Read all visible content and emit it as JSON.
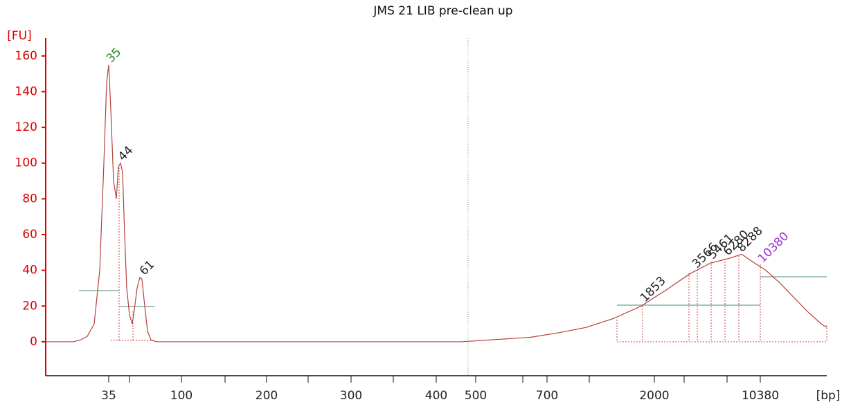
{
  "chart_data": {
    "type": "line",
    "title": "JMS 21 LIB pre-clean up",
    "ylabel": "[FU]",
    "xlabel": "[bp]",
    "x": [
      0,
      40,
      50,
      60,
      70,
      78,
      84,
      88,
      91,
      94,
      98,
      102,
      105,
      108,
      111,
      114,
      117,
      121,
      125,
      128,
      132,
      136,
      139,
      143,
      147,
      152,
      160,
      200,
      300,
      360,
      600,
      640,
      700,
      740,
      780,
      820,
      860,
      900,
      930,
      960,
      990,
      1005,
      1020,
      1040,
      1060,
      1080,
      1100,
      1120,
      1128
    ],
    "series": [
      {
        "color": "#b5403a",
        "values": [
          0,
          0,
          1,
          3,
          10,
          40,
          100,
          145,
          155,
          130,
          90,
          80,
          98,
          100,
          95,
          60,
          30,
          15,
          10,
          18,
          30,
          36,
          35,
          20,
          6,
          1,
          0,
          0,
          0,
          0,
          0,
          1,
          2.5,
          5,
          8,
          13,
          20,
          30,
          38,
          44,
          47,
          49,
          45,
          40,
          33,
          25,
          17,
          10,
          8
        ]
      }
    ],
    "xlim": [
      0,
      1128
    ],
    "ylim": [
      -19,
      170
    ],
    "yticks": [
      0,
      20,
      40,
      60,
      80,
      100,
      120,
      140,
      160
    ],
    "xticks": [
      {
        "value": 91,
        "label": "35"
      },
      {
        "value": 196,
        "label": "100"
      },
      {
        "value": 319,
        "label": "200"
      },
      {
        "value": 441,
        "label": "300"
      },
      {
        "value": 564,
        "label": "400"
      },
      {
        "value": 621,
        "label": "500"
      },
      {
        "value": 724,
        "label": "700"
      },
      {
        "value": 879,
        "label": "2000"
      },
      {
        "value": 1032,
        "label": "10380"
      }
    ],
    "xminorticks": [
      121,
      259,
      379,
      502,
      689,
      785,
      922,
      984
    ],
    "peaks": [
      {
        "label": "35",
        "x": 91,
        "y": 155,
        "color": "#2a8a2a"
      },
      {
        "label": "44",
        "x": 108,
        "y": 100,
        "color": "#222222"
      },
      {
        "label": "61",
        "x": 139,
        "y": 36,
        "color": "#222222"
      },
      {
        "label": "1853",
        "x": 862,
        "y": 21,
        "color": "#222222"
      },
      {
        "label": "3566",
        "x": 937,
        "y": 40,
        "color": "#222222"
      },
      {
        "label": "5461",
        "x": 960,
        "y": 45,
        "color": "#222222"
      },
      {
        "label": "6280",
        "x": 982,
        "y": 47,
        "color": "#222222"
      },
      {
        "label": "8288",
        "x": 1002,
        "y": 49,
        "color": "#222222"
      },
      {
        "label": "10380",
        "x": 1032,
        "y": 43,
        "color": "#9b30d0"
      }
    ]
  }
}
